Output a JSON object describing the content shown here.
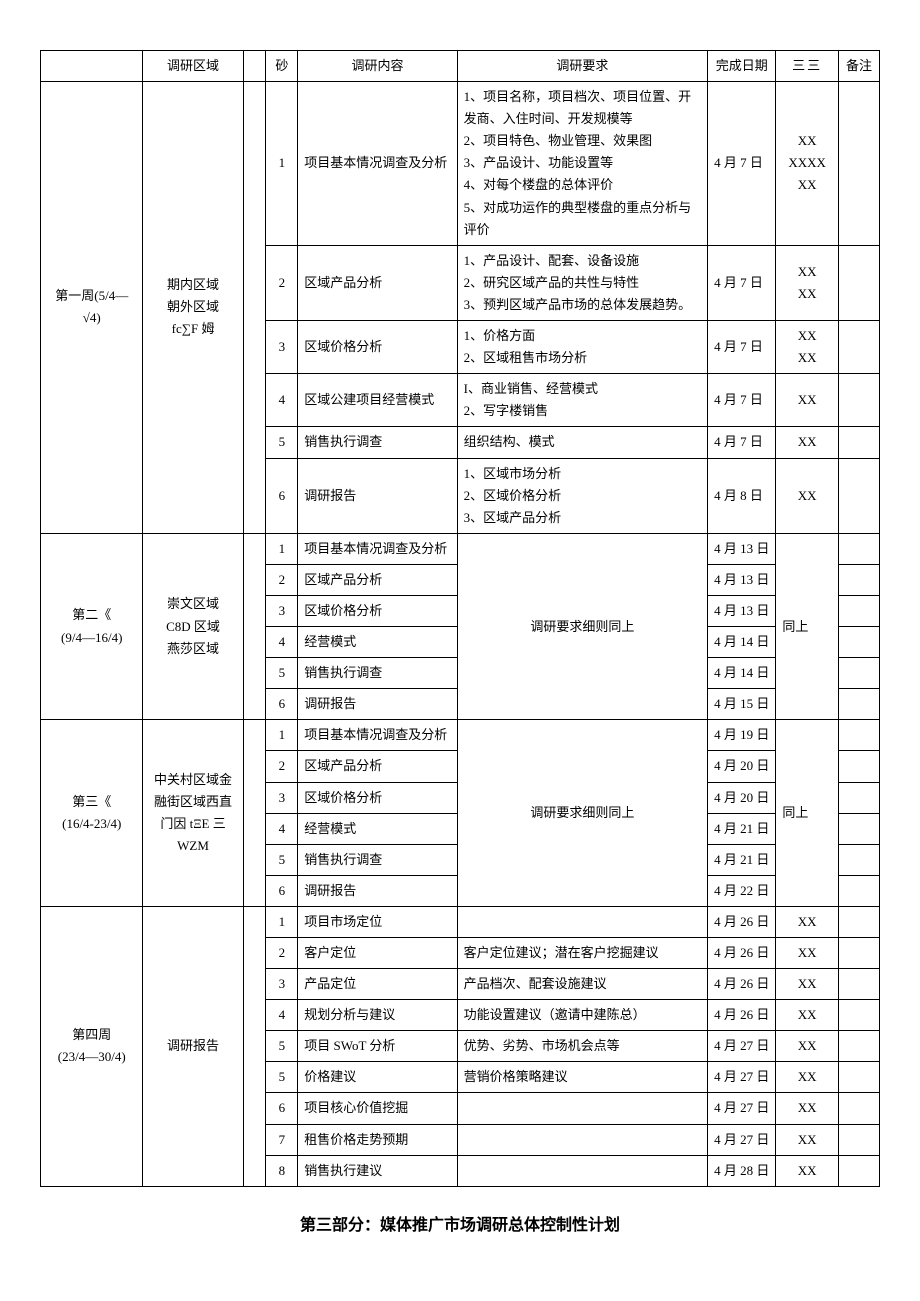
{
  "headers": {
    "week": "",
    "area": "调研区域",
    "narrow": "",
    "narrow2": "砂",
    "no": "",
    "content": "调研内容",
    "req": "调研要求",
    "date": "完成日期",
    "person_glyph": "三三",
    "note": "备注"
  },
  "week1": {
    "label": "第一周(5/4—√4)",
    "area": "期内区域\n朝外区域\nfc∑F 姆",
    "rows": [
      {
        "no": "1",
        "content": "项目基本情况调查及分析",
        "req_lines": [
          "1、项目名称，项目档次、项目位置、开发商、入住时间、开发规模等",
          "2、项目特色、物业管理、效果图",
          "3、产品设计、功能设置等",
          "4、对每个楼盘的总体评价",
          "5、对成功运作的典型楼盘的重点分析与评价"
        ],
        "date": "4 月 7 日",
        "person": "XX\nXXXX\nXX"
      },
      {
        "no": "2",
        "content": "区域产品分析",
        "req_lines": [
          "1、产品设计、配套、设备设施",
          "2、研究区域产品的共性与特性",
          "3、预判区域产品市场的总体发展趋势。"
        ],
        "date": "4 月 7 日",
        "person": "XX\nXX"
      },
      {
        "no": "3",
        "content": "区域价格分析",
        "req_lines": [
          "1、价格方面",
          "2、区域租售市场分析"
        ],
        "date": "4 月 7 日",
        "person": "XX\nXX"
      },
      {
        "no": "4",
        "content": "区域公建项目经营模式",
        "req_lines": [
          "I、商业销售、经营模式",
          "2、写字楼销售"
        ],
        "date": "4 月 7 日",
        "person": "XX"
      },
      {
        "no": "5",
        "content": "销售执行调查",
        "req_lines": [
          "组织结构、模式"
        ],
        "date": "4 月 7 日",
        "person": "XX"
      },
      {
        "no": "6",
        "content": "调研报告",
        "req_lines": [
          "1、区域市场分析",
          "2、区域价格分析",
          "3、区域产品分析"
        ],
        "date": "4 月 8 日",
        "person": "XX"
      }
    ]
  },
  "week2": {
    "label": "第二《\n(9/4—16/4)",
    "area": "崇文区域\nC8D 区域\n燕莎区域",
    "req_merged": "调研要求细则同上",
    "person_merged": "同上",
    "rows": [
      {
        "no": "1",
        "content": "项目基本情况调查及分析",
        "date": "4 月 13 日"
      },
      {
        "no": "2",
        "content": "区域产品分析",
        "date": "4 月 13 日"
      },
      {
        "no": "3",
        "content": "区域价格分析",
        "date": "4 月 13 日"
      },
      {
        "no": "4",
        "content": "经营模式",
        "date": "4 月 14 日"
      },
      {
        "no": "5",
        "content": "销售执行调查",
        "date": "4 月 14 日"
      },
      {
        "no": "6",
        "content": "调研报告",
        "date": "4 月 15 日"
      }
    ]
  },
  "week3": {
    "label": "第三《\n(16/4-23/4)",
    "area": "中关村区域金融街区域西直门因 tΞE 三WZM",
    "req_merged": "调研要求细则同上",
    "person_merged": "同上",
    "rows": [
      {
        "no": "1",
        "content": "项目基本情况调查及分析",
        "date": "4 月 19 日"
      },
      {
        "no": "2",
        "content": "区域产品分析",
        "date": "4 月 20 日"
      },
      {
        "no": "3",
        "content": "区域价格分析",
        "date": "4 月 20 日"
      },
      {
        "no": "4",
        "content": "经营模式",
        "date": "4 月 21 日"
      },
      {
        "no": "5",
        "content": "销售执行调查",
        "date": "4 月 21 日"
      },
      {
        "no": "6",
        "content": "调研报告",
        "date": "4 月 22 日"
      }
    ]
  },
  "week4": {
    "label": "第四周\n(23/4—30/4)",
    "area": "调研报告",
    "rows": [
      {
        "no": "1",
        "content": "项目市场定位",
        "req": "",
        "date": "4 月 26 日",
        "person": "XX"
      },
      {
        "no": "2",
        "content": "客户定位",
        "req": "客户定位建议；潜在客户挖掘建议",
        "date": "4 月 26 日",
        "person": "XX"
      },
      {
        "no": "3",
        "content": "产品定位",
        "req": "产品档次、配套设施建议",
        "date": "4 月 26 日",
        "person": "XX"
      },
      {
        "no": "4",
        "content": "规划分析与建议",
        "req": "功能设置建议（邀请中建陈总）",
        "date": "4 月 26 日",
        "person": "XX"
      },
      {
        "no": "5",
        "content": "项目 SWoT 分析",
        "req": "优势、劣势、市场机会点等",
        "date": "4 月 27 日",
        "person": "XX"
      },
      {
        "no": "5",
        "content": "价格建议",
        "req": "营销价格策略建议",
        "date": "4 月 27 日",
        "person": "XX"
      },
      {
        "no": "6",
        "content": "项目核心价值挖掘",
        "req": "",
        "date": "4 月 27 日",
        "person": "XX"
      },
      {
        "no": "7",
        "content": "租售价格走势预期",
        "req": "",
        "date": "4 月 27 日",
        "person": "XX"
      },
      {
        "no": "8",
        "content": "销售执行建议",
        "req": "",
        "date": "4 月 28 日",
        "person": "XX"
      }
    ]
  },
  "section_title": "第三部分：媒体推广市场调研总体控制性计划"
}
